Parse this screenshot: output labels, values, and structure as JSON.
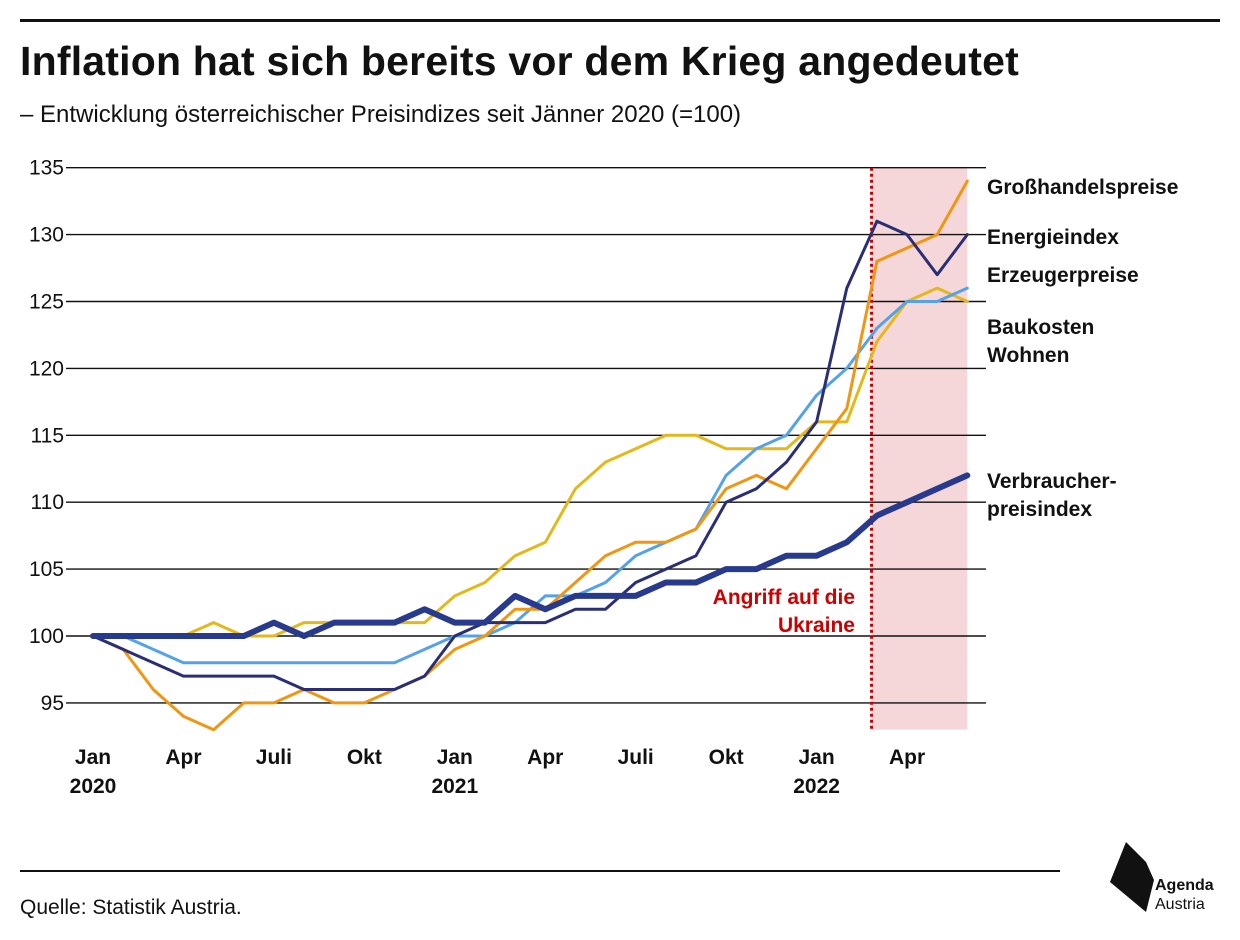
{
  "header": {
    "title": "Inflation hat sich bereits vor dem Krieg angedeutet",
    "subtitle": "– Entwicklung österreichischer Preisindizes seit Jänner 2020 (=100)"
  },
  "footer": {
    "source": "Quelle: Statistik Austria.",
    "logo_line1": "Agenda",
    "logo_line2": "Austria"
  },
  "chart_data": {
    "type": "line",
    "title": "Inflation hat sich bereits vor dem Krieg angedeutet",
    "subtitle": "– Entwicklung österreichischer Preisindizes seit Jänner 2020 (=100)",
    "x": [
      "2020-01",
      "2020-02",
      "2020-03",
      "2020-04",
      "2020-05",
      "2020-06",
      "2020-07",
      "2020-08",
      "2020-09",
      "2020-10",
      "2020-11",
      "2020-12",
      "2021-01",
      "2021-02",
      "2021-03",
      "2021-04",
      "2021-05",
      "2021-06",
      "2021-07",
      "2021-08",
      "2021-09",
      "2021-10",
      "2021-11",
      "2021-12",
      "2022-01",
      "2022-02",
      "2022-03",
      "2022-04",
      "2022-05",
      "2022-06"
    ],
    "x_ticks": [
      {
        "month": "2020-01",
        "label": "Jan",
        "year": "2020"
      },
      {
        "month": "2020-04",
        "label": "Apr",
        "year": ""
      },
      {
        "month": "2020-07",
        "label": "Juli",
        "year": ""
      },
      {
        "month": "2020-10",
        "label": "Okt",
        "year": ""
      },
      {
        "month": "2021-01",
        "label": "Jan",
        "year": "2021"
      },
      {
        "month": "2021-04",
        "label": "Apr",
        "year": ""
      },
      {
        "month": "2021-07",
        "label": "Juli",
        "year": ""
      },
      {
        "month": "2021-10",
        "label": "Okt",
        "year": ""
      },
      {
        "month": "2022-01",
        "label": "Jan",
        "year": "2022"
      },
      {
        "month": "2022-04",
        "label": "Apr",
        "year": ""
      }
    ],
    "y_ticks": [
      95,
      100,
      105,
      110,
      115,
      120,
      125,
      130,
      135
    ],
    "ylim": [
      93,
      135
    ],
    "grid": true,
    "xlabel": "",
    "ylabel": "",
    "highlight": {
      "start": "2022-02-24",
      "end": "2022-06",
      "annotation_line1": "Angriff auf die",
      "annotation_line2": "Ukraine",
      "color": "#f6d7d9",
      "marker_color": "#cc0000"
    },
    "series": [
      {
        "name": "Baukosten Wohnen",
        "label_lines": [
          "Baukosten",
          "Wohnen"
        ],
        "color": "#e3b81b",
        "width": "thin",
        "values": [
          100,
          100,
          100,
          100,
          101,
          100,
          100,
          101,
          101,
          101,
          101,
          101,
          103,
          104,
          106,
          107,
          111,
          113,
          114,
          115,
          115,
          114,
          114,
          114,
          116,
          116,
          122,
          125,
          126,
          125
        ]
      },
      {
        "name": "Erzeugerpreise",
        "label_lines": [
          "Erzeugerpreise"
        ],
        "color": "#56a2e6",
        "width": "thin",
        "values": [
          100,
          100,
          99,
          98,
          98,
          98,
          98,
          98,
          98,
          98,
          98,
          99,
          100,
          100,
          101,
          103,
          103,
          104,
          106,
          107,
          108,
          112,
          114,
          115,
          118,
          120,
          123,
          125,
          125,
          126
        ]
      },
      {
        "name": "Großhandelspreise",
        "label_lines": [
          "Großhandelspreise"
        ],
        "color": "#ef9713",
        "width": "thin",
        "values": [
          100,
          99,
          96,
          94,
          93,
          95,
          95,
          96,
          95,
          95,
          96,
          97,
          99,
          100,
          102,
          102,
          104,
          106,
          107,
          107,
          108,
          111,
          112,
          111,
          114,
          117,
          128,
          129,
          130,
          134
        ]
      },
      {
        "name": "Energieindex",
        "label_lines": [
          "Energieindex"
        ],
        "color": "#2a2f75",
        "width": "thin",
        "values": [
          100,
          99,
          98,
          97,
          97,
          97,
          97,
          96,
          96,
          96,
          96,
          97,
          100,
          101,
          101,
          101,
          102,
          102,
          104,
          105,
          106,
          110,
          111,
          113,
          116,
          126,
          131,
          130,
          127,
          130
        ]
      },
      {
        "name": "Verbraucherpreisindex",
        "label_lines": [
          "Verbraucher-",
          "preisindex"
        ],
        "color": "#283a8c",
        "width": "thick",
        "values": [
          100,
          100,
          100,
          100,
          100,
          100,
          101,
          100,
          101,
          101,
          101,
          102,
          101,
          101,
          103,
          102,
          103,
          103,
          103,
          104,
          104,
          105,
          105,
          106,
          106,
          107,
          109,
          110,
          111,
          112
        ]
      }
    ]
  }
}
